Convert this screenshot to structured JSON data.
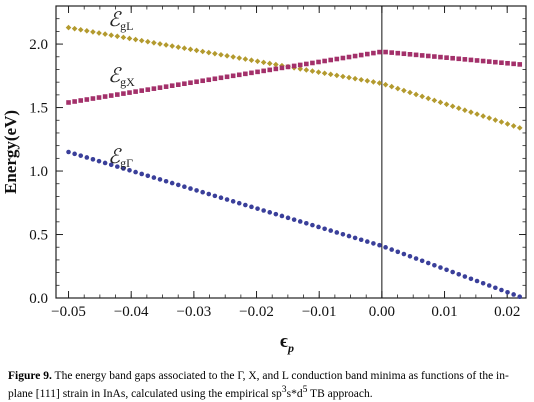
{
  "chart_data": {
    "type": "scatter",
    "title": "",
    "xlabel": "ϵ",
    "xlabel_sub": "p",
    "ylabel": "Energy(eV)",
    "xlim": [
      -0.052,
      0.023
    ],
    "ylim": [
      0.0,
      2.3
    ],
    "xticks": [
      -0.05,
      -0.04,
      -0.03,
      -0.02,
      -0.01,
      0.0,
      0.01,
      0.02
    ],
    "xtick_labels": [
      "−0.05",
      "−0.04",
      "−0.03",
      "−0.02",
      "−0.01",
      "0.00",
      "0.01",
      "0.02"
    ],
    "yticks": [
      0.0,
      0.5,
      1.0,
      1.5,
      2.0
    ],
    "ytick_labels": [
      "0.0",
      "0.5",
      "1.0",
      "1.5",
      "2.0"
    ],
    "grid": false,
    "vertical_line_at": 0.0,
    "series": [
      {
        "name": "E_gL",
        "label_main": "ℰ",
        "label_sub": "gL",
        "color": "#b39a2e",
        "marker": "diamond",
        "x": [
          -0.05,
          0.0,
          0.022
        ],
        "y": [
          2.13,
          1.69,
          1.34
        ]
      },
      {
        "name": "E_gX",
        "label_main": "ℰ",
        "label_sub": "gX",
        "color": "#a3306a",
        "marker": "square",
        "x": [
          -0.05,
          0.0,
          0.022
        ],
        "y": [
          1.54,
          1.94,
          1.84
        ]
      },
      {
        "name": "E_gΓ",
        "label_main": "ℰ",
        "label_sub": "gΓ",
        "color": "#3a3f9a",
        "marker": "circle",
        "x": [
          -0.05,
          0.0,
          0.022
        ],
        "y": [
          1.15,
          0.41,
          0.01
        ]
      }
    ]
  },
  "caption": {
    "label": "Figure 9.",
    "text_a": "The energy band gaps associated to the Γ, X, and L conduction band minima as functions of the in-plane [111] strain in InAs, calculated using the empirical sp",
    "sup_1": "3",
    "text_b": "s*d",
    "sup_2": "5",
    "text_c": " TB approach."
  }
}
